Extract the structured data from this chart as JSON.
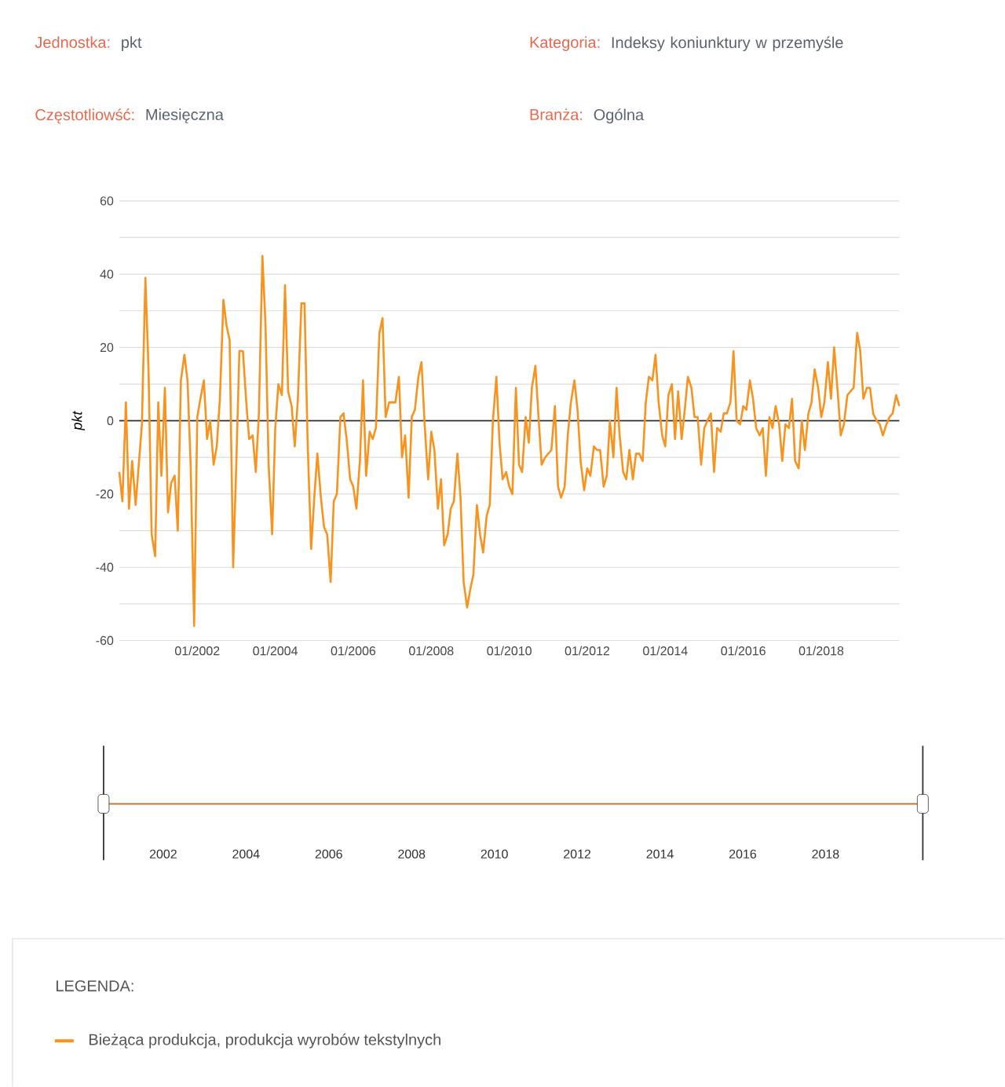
{
  "chart_data": [
    {
      "type": "line",
      "ylabel": "pkt",
      "legend_title": "LEGENDA:",
      "legend": "bottom",
      "grid": "y",
      "annotations": [
        "Jednostka:",
        "pkt",
        "Kategoria:",
        "Indeksy koniunktury w przemyśle",
        "Częstotliowść:",
        "Miesięczna",
        "Branża:",
        "Ogólna",
        "2002",
        "2004",
        "2006",
        "2008",
        "2010",
        "2012",
        "2014",
        "2016",
        "2018"
      ],
      "x": [
        "2000-01",
        "2000-02",
        "2000-03",
        "2000-04",
        "2000-05",
        "2000-06",
        "2000-07",
        "2000-08",
        "2000-09",
        "2000-10",
        "2000-11",
        "2000-12",
        "2001-01",
        "2001-02",
        "2001-03",
        "2001-04",
        "2001-05",
        "2001-06",
        "2001-07",
        "2001-08",
        "2001-09",
        "2001-10",
        "2001-11",
        "2001-12",
        "2002-01",
        "2002-02",
        "2002-03",
        "2002-04",
        "2002-05",
        "2002-06",
        "2002-07",
        "2002-08",
        "2002-09",
        "2002-10",
        "2002-11",
        "2002-12",
        "2003-01",
        "2003-02",
        "2003-03",
        "2003-04",
        "2003-05",
        "2003-06",
        "2003-07",
        "2003-08",
        "2003-09",
        "2003-10",
        "2003-11",
        "2003-12",
        "2004-01",
        "2004-02",
        "2004-03",
        "2004-04",
        "2004-05",
        "2004-06",
        "2004-07",
        "2004-08",
        "2004-09",
        "2004-10",
        "2004-11",
        "2004-12",
        "2005-01",
        "2005-02",
        "2005-03",
        "2005-04",
        "2005-05",
        "2005-06",
        "2005-07",
        "2005-08",
        "2005-09",
        "2005-10",
        "2005-11",
        "2005-12",
        "2006-01",
        "2006-02",
        "2006-03",
        "2006-04",
        "2006-05",
        "2006-06",
        "2006-07",
        "2006-08",
        "2006-09",
        "2006-10",
        "2006-11",
        "2006-12",
        "2007-01",
        "2007-02",
        "2007-03",
        "2007-04",
        "2007-05",
        "2007-06",
        "2007-07",
        "2007-08",
        "2007-09",
        "2007-10",
        "2007-11",
        "2007-12",
        "2008-01",
        "2008-02",
        "2008-03",
        "2008-04",
        "2008-05",
        "2008-06",
        "2008-07",
        "2008-08",
        "2008-09",
        "2008-10",
        "2008-11",
        "2008-12",
        "2009-01",
        "2009-02",
        "2009-03",
        "2009-04",
        "2009-05",
        "2009-06",
        "2009-07",
        "2009-08",
        "2009-09",
        "2009-10",
        "2009-11",
        "2009-12",
        "2010-01",
        "2010-02",
        "2010-03",
        "2010-04",
        "2010-05",
        "2010-06",
        "2010-07",
        "2010-08",
        "2010-09",
        "2010-10",
        "2010-11",
        "2010-12",
        "2011-01",
        "2011-02",
        "2011-03",
        "2011-04",
        "2011-05",
        "2011-06",
        "2011-07",
        "2011-08",
        "2011-09",
        "2011-10",
        "2011-11",
        "2011-12",
        "2012-01",
        "2012-02",
        "2012-03",
        "2012-04",
        "2012-05",
        "2012-06",
        "2012-07",
        "2012-08",
        "2012-09",
        "2012-10",
        "2012-11",
        "2012-12",
        "2013-01",
        "2013-02",
        "2013-03",
        "2013-04",
        "2013-05",
        "2013-06",
        "2013-07",
        "2013-08",
        "2013-09",
        "2013-10",
        "2013-11",
        "2013-12",
        "2014-01",
        "2014-02",
        "2014-03",
        "2014-04",
        "2014-05",
        "2014-06",
        "2014-07",
        "2014-08",
        "2014-09",
        "2014-10",
        "2014-11",
        "2014-12",
        "2015-01",
        "2015-02",
        "2015-03",
        "2015-04",
        "2015-05",
        "2015-06",
        "2015-07",
        "2015-08",
        "2015-09",
        "2015-10",
        "2015-11",
        "2015-12",
        "2016-01",
        "2016-02",
        "2016-03",
        "2016-04",
        "2016-05",
        "2016-06",
        "2016-07",
        "2016-08",
        "2016-09",
        "2016-10",
        "2016-11",
        "2016-12",
        "2017-01",
        "2017-02",
        "2017-03",
        "2017-04",
        "2017-05",
        "2017-06",
        "2017-07",
        "2017-08",
        "2017-09",
        "2017-10",
        "2017-11",
        "2017-12",
        "2018-01",
        "2018-02",
        "2018-03",
        "2018-04",
        "2018-05",
        "2018-06",
        "2018-07",
        "2018-08",
        "2018-09",
        "2018-10",
        "2018-11",
        "2018-12",
        "2019-01",
        "2019-02",
        "2019-03",
        "2019-04",
        "2019-05",
        "2019-06",
        "2019-07",
        "2019-08",
        "2019-09",
        "2019-10",
        "2019-11",
        "2019-12",
        "2020-01"
      ],
      "series": [
        {
          "name": "Bieżąca produkcja, produkcja wyrobów tekstylnych",
          "color": "#f7931e",
          "values": [
            -14,
            -22,
            5,
            -24,
            -11,
            -23,
            -12,
            -1,
            39,
            14,
            -31,
            -37,
            5,
            -15,
            9,
            -25,
            -17,
            -15,
            -30,
            11,
            18,
            11,
            -12,
            -56,
            1,
            6,
            11,
            -5,
            0,
            -12,
            -7,
            6,
            33,
            26,
            22,
            -40,
            -12,
            19,
            19,
            6,
            -5,
            -4,
            -14,
            2,
            45,
            26,
            -12,
            -31,
            -2,
            10,
            7,
            37,
            8,
            4,
            -7,
            6,
            32,
            32,
            -6,
            -35,
            -21,
            -9,
            -21,
            -29,
            -31,
            -44,
            -22,
            -20,
            1,
            2,
            -5,
            -16,
            -18,
            -24,
            -11,
            11,
            -15,
            -3,
            -5,
            -2,
            24,
            28,
            1,
            5,
            5,
            5,
            12,
            -10,
            -4,
            -21,
            1,
            3,
            12,
            16,
            -1,
            -16,
            -3,
            -8,
            -24,
            -16,
            -34,
            -31,
            -24,
            -22,
            -9,
            -21,
            -44,
            -51,
            -46,
            -42,
            -23,
            -31,
            -36,
            -26,
            -23,
            0,
            12,
            -6,
            -16,
            -14,
            -18,
            -20,
            9,
            -12,
            -14,
            1,
            -6,
            9,
            15,
            1,
            -12,
            -10,
            -9,
            -8,
            4,
            -18,
            -21,
            -18,
            -4,
            5,
            11,
            3,
            -11,
            -19,
            -13,
            -15,
            -7,
            -8,
            -8,
            -18,
            -15,
            0,
            -10,
            9,
            -4,
            -14,
            -16,
            -8,
            -16,
            -9,
            -9,
            -11,
            5,
            12,
            11,
            18,
            5,
            -4,
            -7,
            7,
            10,
            -5,
            8,
            -5,
            3,
            12,
            9,
            1,
            1,
            -12,
            -2,
            0,
            2,
            -14,
            -2,
            -3,
            2,
            2,
            5,
            19,
            0,
            -1,
            4,
            3,
            11,
            6,
            -2,
            -4,
            -2,
            -15,
            1,
            -2,
            4,
            -1,
            -11,
            -1,
            -2,
            6,
            -11,
            -13,
            0,
            -8,
            2,
            5,
            14,
            9,
            1,
            5,
            16,
            6,
            20,
            8,
            -4,
            -1,
            7,
            8,
            9,
            24,
            19,
            6,
            9,
            9,
            2,
            0,
            -1,
            -4,
            -1,
            1,
            2,
            7,
            4
          ]
        }
      ],
      "xlim": [
        "2000-01",
        "2020-01"
      ],
      "xticks": [
        {
          "value": "2002-01",
          "label": "01/2002"
        },
        {
          "value": "2004-01",
          "label": "01/2004"
        },
        {
          "value": "2006-01",
          "label": "01/2006"
        },
        {
          "value": "2008-01",
          "label": "01/2008"
        },
        {
          "value": "2010-01",
          "label": "01/2010"
        },
        {
          "value": "2012-01",
          "label": "01/2012"
        },
        {
          "value": "2014-01",
          "label": "01/2014"
        },
        {
          "value": "2016-01",
          "label": "01/2016"
        },
        {
          "value": "2018-01",
          "label": "01/2018"
        }
      ],
      "ylim": [
        -60,
        60
      ],
      "yticks": [
        -60,
        {
          "value": -50,
          "label": null
        },
        -40,
        {
          "value": -30,
          "label": null
        },
        -20,
        {
          "value": -10,
          "label": null
        },
        0,
        {
          "value": 10,
          "label": null
        },
        20,
        {
          "value": 30,
          "label": null
        },
        40,
        {
          "value": 50,
          "label": null
        },
        60
      ],
      "ref_lines": [
        {
          "axis": "y",
          "value": 0,
          "color": "#333333"
        }
      ]
    }
  ]
}
